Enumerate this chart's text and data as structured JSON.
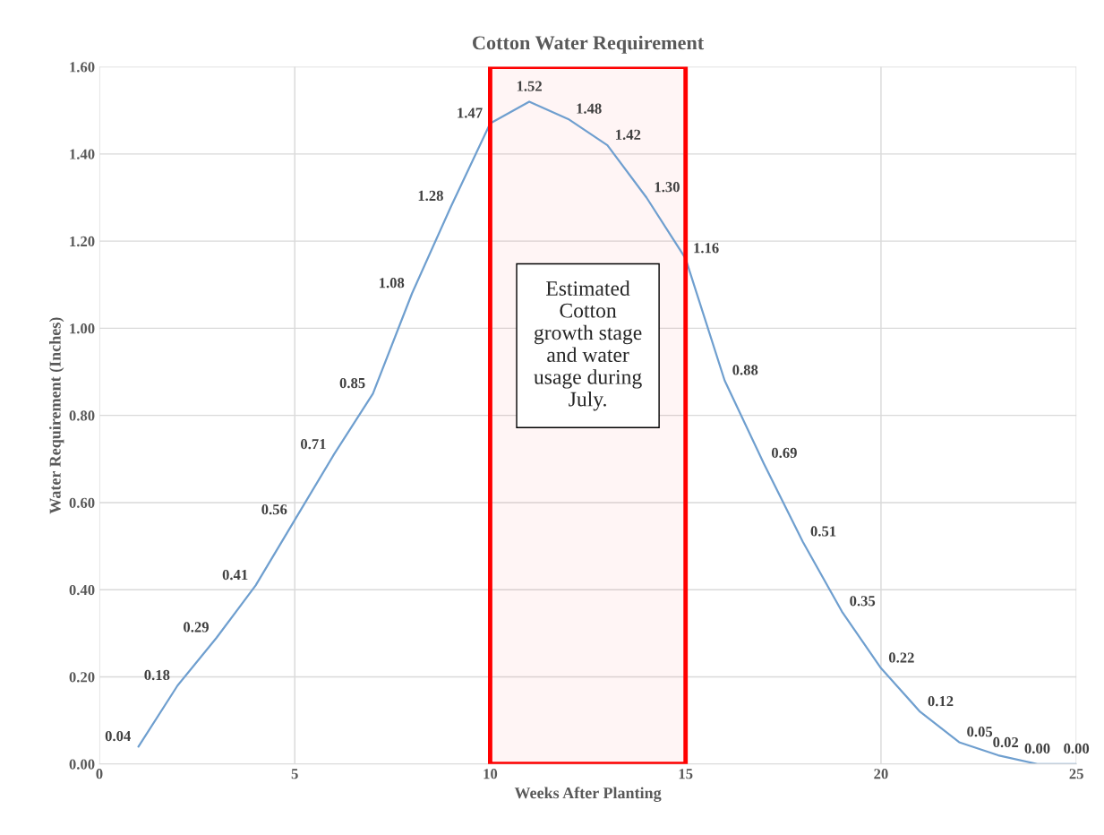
{
  "chart_data": {
    "type": "line",
    "title": "Cotton Water Requirement",
    "xlabel": "Weeks After Planting",
    "ylabel": "Water Requirement (Inches)",
    "x": [
      1,
      2,
      3,
      4,
      5,
      6,
      7,
      8,
      9,
      10,
      11,
      12,
      13,
      14,
      15,
      16,
      17,
      18,
      19,
      20,
      21,
      22,
      23,
      24,
      25
    ],
    "series": [
      {
        "color": "#6f9fcf",
        "values": [
          0.04,
          0.18,
          0.29,
          0.41,
          0.56,
          0.71,
          0.85,
          1.08,
          1.28,
          1.47,
          1.52,
          1.48,
          1.42,
          1.3,
          1.16,
          0.88,
          0.69,
          0.51,
          0.35,
          0.22,
          0.12,
          0.05,
          0.02,
          0.0,
          0.0
        ]
      }
    ],
    "value_labels": [
      "0.04",
      "0.18",
      "0.29",
      "0.41",
      "0.56",
      "0.71",
      "0.85",
      "1.08",
      "1.28",
      "1.47",
      "1.52",
      "1.48",
      "1.42",
      "1.30",
      "1.16",
      "0.88",
      "0.69",
      "0.51",
      "0.35",
      "0.22",
      "0.12",
      "0.05",
      "0.02",
      "0.00",
      "0.00"
    ],
    "xlim": [
      0,
      25
    ],
    "xticks": [
      0,
      5,
      10,
      15,
      20,
      25
    ],
    "ylim": [
      0,
      1.6
    ],
    "yticks": [
      {
        "value": 0,
        "label": "0.00"
      },
      {
        "value": 0.2,
        "label": "0.20"
      },
      {
        "value": 0.4,
        "label": "0.40"
      },
      {
        "value": 0.6,
        "label": "0.60"
      },
      {
        "value": 0.8,
        "label": "0.80"
      },
      {
        "value": 1.0,
        "label": "1.00"
      },
      {
        "value": 1.2,
        "label": "1.20"
      },
      {
        "value": 1.4,
        "label": "1.40"
      },
      {
        "value": 1.6,
        "label": "1.60"
      }
    ],
    "grid": true,
    "marker": "none",
    "line_style": "solid",
    "legend": false,
    "bands": [
      {
        "axis": "x",
        "from": 10,
        "to": 15,
        "label": "Estimated\nCotton\ngrowth stage\nand water\nusage during\nJuly.",
        "color": "#ff0000"
      }
    ]
  }
}
